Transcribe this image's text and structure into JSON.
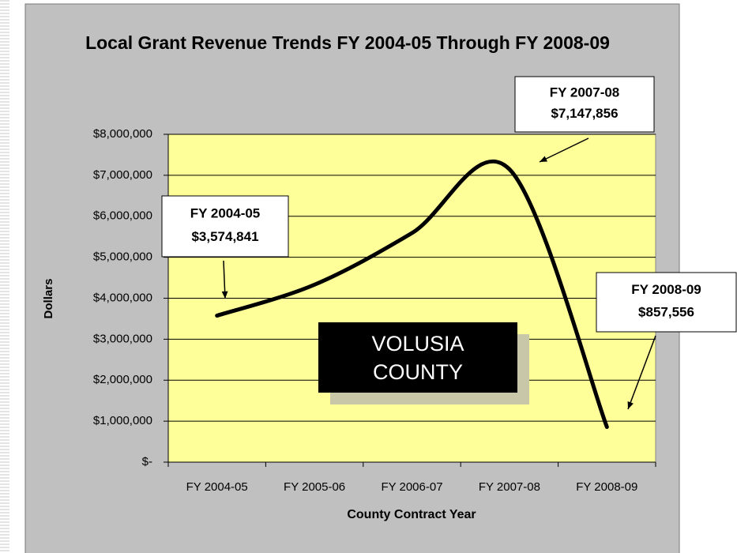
{
  "chart_data": {
    "type": "line",
    "title": "Local Grant Revenue Trends FY 2004-05 Through FY 2008-09",
    "x_label": "County Contract Year",
    "y_label": "Dollars",
    "categories": [
      "FY 2004-05",
      "FY 2005-06",
      "FY 2006-07",
      "FY 2007-08",
      "FY 2008-09"
    ],
    "series": [
      {
        "name": "Local Grant Revenue",
        "color": "#000000",
        "values": [
          3574841,
          4330000,
          5590000,
          7147856,
          857556
        ],
        "value_labels": [
          "$3,574,841",
          null,
          null,
          "$7,147,856",
          "$857,556"
        ]
      }
    ],
    "ylim": [
      0,
      8000000
    ],
    "yticks": [
      {
        "value": 0,
        "label": "$-"
      },
      {
        "value": 1000000,
        "label": "$1,000,000"
      },
      {
        "value": 2000000,
        "label": "$2,000,000"
      },
      {
        "value": 3000000,
        "label": "$3,000,000"
      },
      {
        "value": 4000000,
        "label": "$4,000,000"
      },
      {
        "value": 5000000,
        "label": "$5,000,000"
      },
      {
        "value": 6000000,
        "label": "$6,000,000"
      },
      {
        "value": 7000000,
        "label": "$7,000,000"
      },
      {
        "value": 8000000,
        "label": "$8,000,000"
      }
    ],
    "grid": true,
    "plot_color": "#ffff99",
    "annotations": [
      {
        "text": "VOLUSIA COUNTY"
      }
    ]
  }
}
